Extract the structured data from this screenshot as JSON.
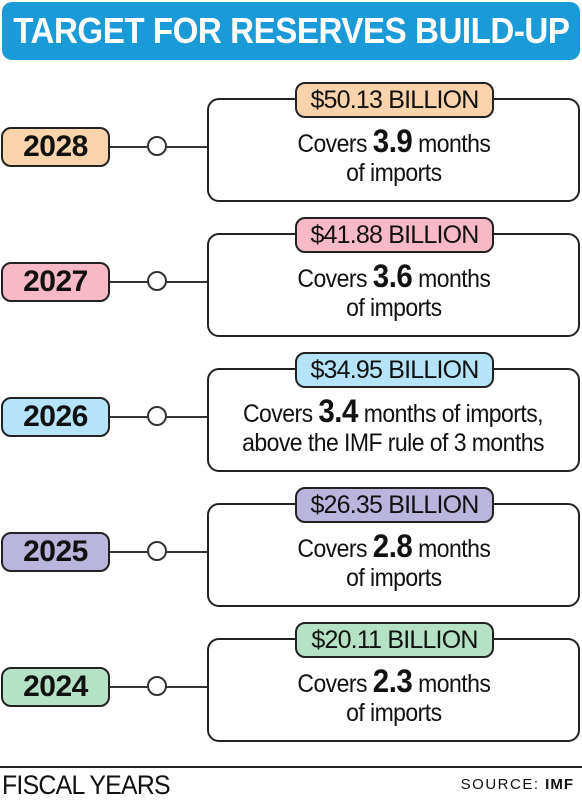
{
  "title": "TARGET FOR RESERVES BUILD-UP",
  "colors": {
    "title_bg": "#1a9ad6",
    "2028": "#f9d3ac",
    "2027": "#f7b9c7",
    "2026": "#b5e3f7",
    "2025": "#b9b5dd",
    "2024": "#b5e2c4"
  },
  "rows": [
    {
      "year": "2028",
      "amount": "$50.13 BILLION",
      "prefix": "Covers",
      "value": "3.9",
      "suffix": "months",
      "line2": "of imports"
    },
    {
      "year": "2027",
      "amount": "$41.88 BILLION",
      "prefix": "Covers",
      "value": "3.6",
      "suffix": "months",
      "line2": "of imports"
    },
    {
      "year": "2026",
      "amount": "$34.95 BILLION",
      "prefix": "Covers",
      "value": "3.4",
      "suffix": "months of imports,",
      "line2": "above the IMF rule of 3 months"
    },
    {
      "year": "2025",
      "amount": "$26.35 BILLION",
      "prefix": "Covers",
      "value": "2.8",
      "suffix": "months",
      "line2": "of imports"
    },
    {
      "year": "2024",
      "amount": "$20.11 BILLION",
      "prefix": "Covers",
      "value": "2.3",
      "suffix": "months",
      "line2": "of imports"
    }
  ],
  "footer": {
    "label": "FISCAL YEARS",
    "source_prefix": "SOURCE:",
    "source_name": "IMF"
  }
}
